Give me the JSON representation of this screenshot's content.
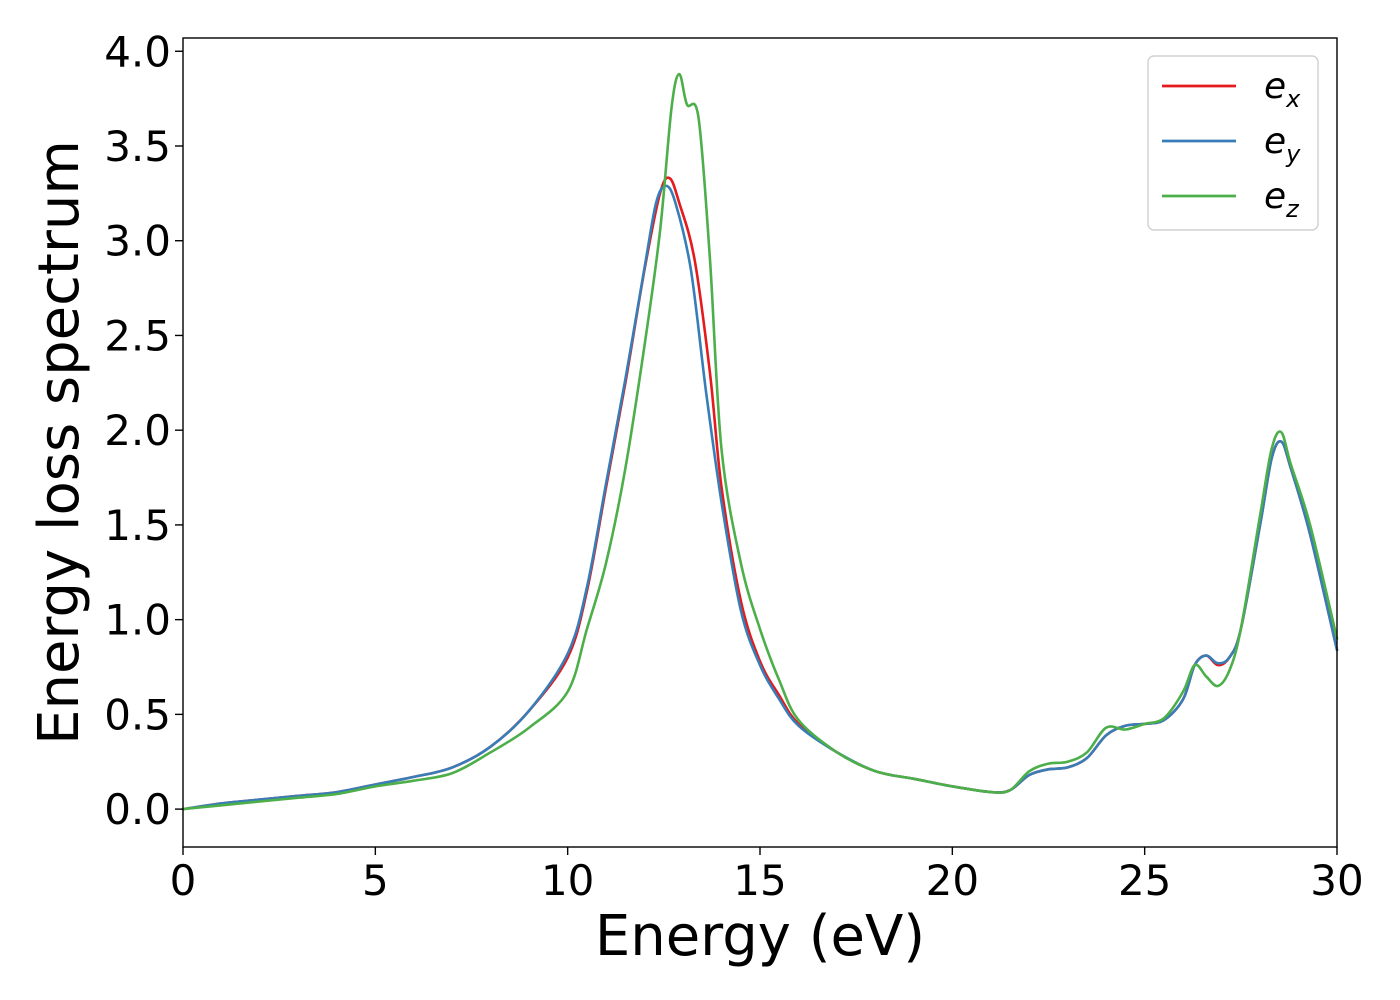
{
  "chart_data": {
    "type": "line",
    "title": "",
    "xlabel": "Energy (eV)",
    "ylabel": "Energy loss spectrum",
    "xlim": [
      0,
      30
    ],
    "ylim": [
      -0.2,
      4.07
    ],
    "xticks": [
      0,
      5,
      10,
      15,
      20,
      25,
      30
    ],
    "xtick_labels": [
      "0",
      "5",
      "10",
      "15",
      "20",
      "25",
      "30"
    ],
    "yticks": [
      0.0,
      0.5,
      1.0,
      1.5,
      2.0,
      2.5,
      3.0,
      3.5,
      4.0
    ],
    "ytick_labels": [
      "0.0",
      "0.5",
      "1.0",
      "1.5",
      "2.0",
      "2.5",
      "3.0",
      "3.5",
      "4.0"
    ],
    "grid": false,
    "legend_position": "top-right",
    "series": [
      {
        "name": "e_x",
        "legend_base": "e",
        "legend_sub": "x",
        "color": "#e41a1c",
        "points": [
          [
            0,
            0.0
          ],
          [
            1,
            0.03
          ],
          [
            2,
            0.05
          ],
          [
            3,
            0.07
          ],
          [
            4,
            0.09
          ],
          [
            5,
            0.13
          ],
          [
            6,
            0.17
          ],
          [
            7,
            0.22
          ],
          [
            8,
            0.33
          ],
          [
            9,
            0.52
          ],
          [
            10,
            0.8
          ],
          [
            10.5,
            1.15
          ],
          [
            11,
            1.7
          ],
          [
            11.5,
            2.25
          ],
          [
            12,
            2.85
          ],
          [
            12.4,
            3.25
          ],
          [
            12.65,
            3.33
          ],
          [
            12.9,
            3.2
          ],
          [
            13.3,
            2.9
          ],
          [
            13.7,
            2.3
          ],
          [
            14,
            1.7
          ],
          [
            14.5,
            1.1
          ],
          [
            15,
            0.78
          ],
          [
            15.5,
            0.6
          ],
          [
            16,
            0.45
          ],
          [
            17,
            0.3
          ],
          [
            18,
            0.2
          ],
          [
            19,
            0.16
          ],
          [
            20,
            0.12
          ],
          [
            21,
            0.09
          ],
          [
            21.5,
            0.1
          ],
          [
            22,
            0.18
          ],
          [
            22.5,
            0.21
          ],
          [
            23,
            0.22
          ],
          [
            23.5,
            0.27
          ],
          [
            24,
            0.39
          ],
          [
            24.5,
            0.44
          ],
          [
            25,
            0.45
          ],
          [
            25.5,
            0.47
          ],
          [
            26,
            0.58
          ],
          [
            26.3,
            0.76
          ],
          [
            26.6,
            0.81
          ],
          [
            26.9,
            0.76
          ],
          [
            27.2,
            0.8
          ],
          [
            27.5,
            0.95
          ],
          [
            28,
            1.5
          ],
          [
            28.3,
            1.85
          ],
          [
            28.55,
            1.94
          ],
          [
            28.8,
            1.8
          ],
          [
            29.3,
            1.45
          ],
          [
            30,
            0.84
          ]
        ]
      },
      {
        "name": "e_y",
        "legend_base": "e",
        "legend_sub": "y",
        "color": "#377eb8",
        "points": [
          [
            0,
            0.0
          ],
          [
            1,
            0.03
          ],
          [
            2,
            0.05
          ],
          [
            3,
            0.07
          ],
          [
            4,
            0.09
          ],
          [
            5,
            0.13
          ],
          [
            6,
            0.17
          ],
          [
            7,
            0.22
          ],
          [
            8,
            0.33
          ],
          [
            9,
            0.52
          ],
          [
            10,
            0.82
          ],
          [
            10.5,
            1.17
          ],
          [
            11,
            1.72
          ],
          [
            11.5,
            2.27
          ],
          [
            12,
            2.86
          ],
          [
            12.3,
            3.2
          ],
          [
            12.55,
            3.29
          ],
          [
            12.8,
            3.2
          ],
          [
            13.2,
            2.85
          ],
          [
            13.6,
            2.2
          ],
          [
            14,
            1.62
          ],
          [
            14.5,
            1.05
          ],
          [
            15,
            0.76
          ],
          [
            15.5,
            0.58
          ],
          [
            16,
            0.44
          ],
          [
            17,
            0.3
          ],
          [
            18,
            0.2
          ],
          [
            19,
            0.16
          ],
          [
            20,
            0.12
          ],
          [
            21,
            0.09
          ],
          [
            21.5,
            0.1
          ],
          [
            22,
            0.18
          ],
          [
            22.5,
            0.21
          ],
          [
            23,
            0.22
          ],
          [
            23.5,
            0.27
          ],
          [
            24,
            0.39
          ],
          [
            24.5,
            0.44
          ],
          [
            25,
            0.45
          ],
          [
            25.5,
            0.47
          ],
          [
            26,
            0.58
          ],
          [
            26.3,
            0.76
          ],
          [
            26.6,
            0.81
          ],
          [
            26.9,
            0.77
          ],
          [
            27.2,
            0.8
          ],
          [
            27.5,
            0.95
          ],
          [
            28,
            1.5
          ],
          [
            28.3,
            1.85
          ],
          [
            28.55,
            1.94
          ],
          [
            28.8,
            1.8
          ],
          [
            29.3,
            1.45
          ],
          [
            30,
            0.84
          ]
        ]
      },
      {
        "name": "e_z",
        "legend_base": "e",
        "legend_sub": "z",
        "color": "#4daf4a",
        "points": [
          [
            0,
            0.0
          ],
          [
            1,
            0.02
          ],
          [
            2,
            0.04
          ],
          [
            3,
            0.06
          ],
          [
            4,
            0.08
          ],
          [
            5,
            0.12
          ],
          [
            6,
            0.15
          ],
          [
            7,
            0.19
          ],
          [
            8,
            0.3
          ],
          [
            9,
            0.43
          ],
          [
            10,
            0.62
          ],
          [
            10.5,
            0.95
          ],
          [
            11,
            1.3
          ],
          [
            11.5,
            1.8
          ],
          [
            12,
            2.45
          ],
          [
            12.4,
            3.05
          ],
          [
            12.7,
            3.7
          ],
          [
            12.9,
            3.88
          ],
          [
            13.1,
            3.72
          ],
          [
            13.4,
            3.65
          ],
          [
            13.7,
            2.9
          ],
          [
            14,
            1.9
          ],
          [
            14.5,
            1.3
          ],
          [
            15,
            0.95
          ],
          [
            15.5,
            0.68
          ],
          [
            16,
            0.47
          ],
          [
            17,
            0.3
          ],
          [
            18,
            0.2
          ],
          [
            19,
            0.16
          ],
          [
            20,
            0.12
          ],
          [
            21,
            0.09
          ],
          [
            21.5,
            0.1
          ],
          [
            22,
            0.2
          ],
          [
            22.5,
            0.24
          ],
          [
            23,
            0.25
          ],
          [
            23.5,
            0.3
          ],
          [
            24,
            0.43
          ],
          [
            24.5,
            0.42
          ],
          [
            25,
            0.45
          ],
          [
            25.5,
            0.48
          ],
          [
            26,
            0.62
          ],
          [
            26.3,
            0.76
          ],
          [
            26.6,
            0.7
          ],
          [
            26.9,
            0.65
          ],
          [
            27.2,
            0.73
          ],
          [
            27.5,
            0.95
          ],
          [
            28,
            1.55
          ],
          [
            28.3,
            1.9
          ],
          [
            28.55,
            1.99
          ],
          [
            28.8,
            1.82
          ],
          [
            29.3,
            1.5
          ],
          [
            30,
            0.9
          ]
        ]
      }
    ]
  }
}
